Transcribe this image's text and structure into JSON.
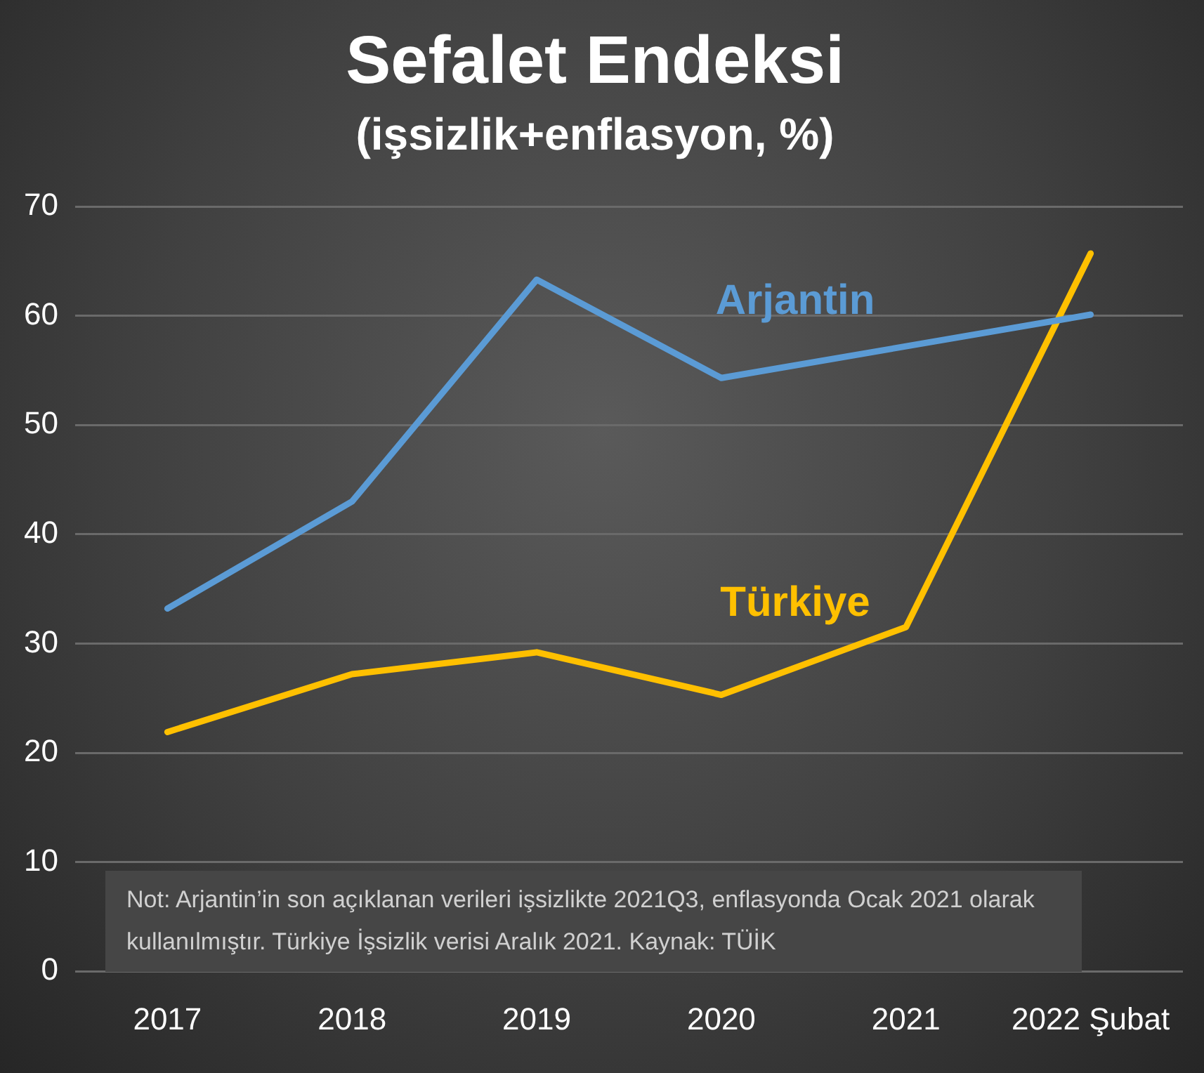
{
  "chart_data": {
    "type": "line",
    "title": "Sefalet Endeksi",
    "subtitle": "(işsizlik+enflasyon, %)",
    "categories": [
      "2017",
      "2018",
      "2019",
      "2020",
      "2021",
      "2022 Şubat"
    ],
    "series": [
      {
        "name": "Arjantin",
        "color": "#5b9bd5",
        "values": [
          33.2,
          43.0,
          63.3,
          54.3,
          57.2,
          60.1
        ]
      },
      {
        "name": "Türkiye",
        "color": "#ffc000",
        "values": [
          21.9,
          27.2,
          29.2,
          25.3,
          31.5,
          65.7
        ]
      }
    ],
    "ylim": [
      0,
      70
    ],
    "yticks": [
      0,
      10,
      20,
      30,
      40,
      50,
      60,
      70
    ],
    "grid": "y",
    "legend": false,
    "marker": "none",
    "line_style": "solid",
    "annotations": [
      "Not: Arjantin’in son açıklanan verileri işsizlikte 2021Q3, enflasyonda Ocak 2021 olarak kullanılmıştır. Türkiye İşsizlik verisi Aralık 2021. Kaynak: TÜİK"
    ]
  }
}
